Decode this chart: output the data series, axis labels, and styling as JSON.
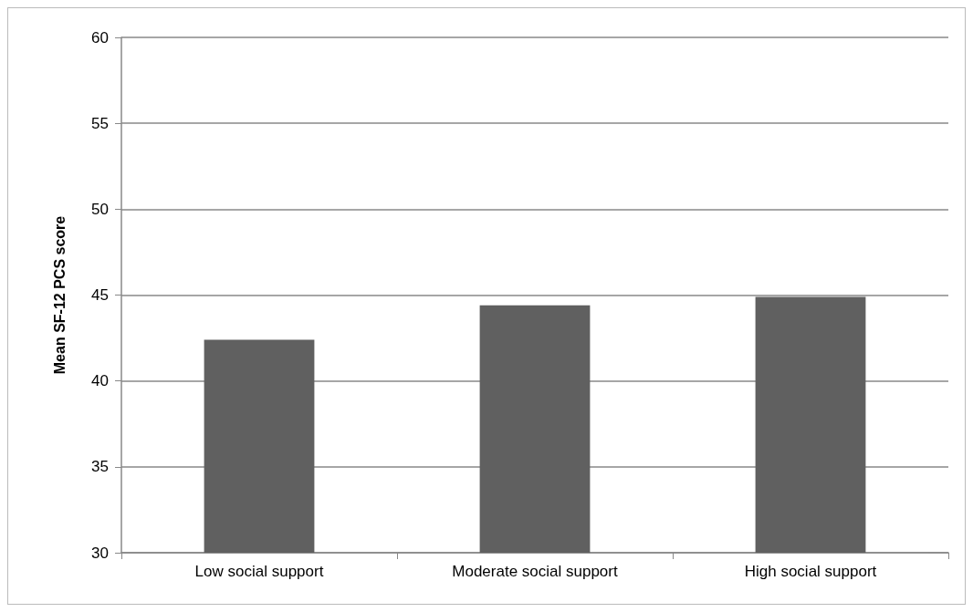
{
  "chart_data": {
    "type": "bar",
    "ylabel": "Mean SF-12 PCS score",
    "categories": [
      "Low social support",
      "Moderate social support",
      "High social support"
    ],
    "values": [
      42.4,
      44.4,
      44.9
    ],
    "color": "#606060",
    "ylim": [
      30,
      60
    ],
    "yticks": [
      30,
      35,
      40,
      45,
      50,
      55,
      60
    ],
    "grid": "y"
  }
}
